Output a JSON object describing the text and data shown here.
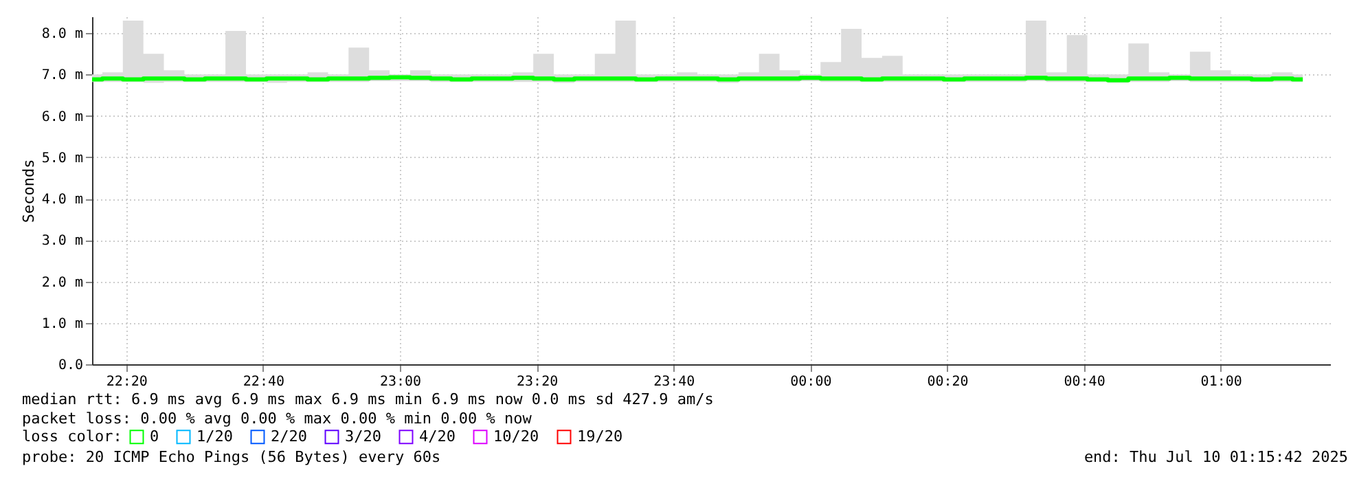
{
  "chart_data": {
    "type": "line",
    "ylabel": "Seconds",
    "legend_title": "loss color:",
    "legend": "bottom",
    "grid": true,
    "marker": "none",
    "line_style": "solid",
    "x": [
      "2025-07-09T22:15",
      "2025-07-09T22:18",
      "2025-07-09T22:21",
      "2025-07-09T22:24",
      "2025-07-09T22:27",
      "2025-07-09T22:30",
      "2025-07-09T22:33",
      "2025-07-09T22:36",
      "2025-07-09T22:39",
      "2025-07-09T22:42",
      "2025-07-09T22:45",
      "2025-07-09T22:48",
      "2025-07-09T22:51",
      "2025-07-09T22:54",
      "2025-07-09T22:57",
      "2025-07-09T23:00",
      "2025-07-09T23:03",
      "2025-07-09T23:06",
      "2025-07-09T23:09",
      "2025-07-09T23:12",
      "2025-07-09T23:15",
      "2025-07-09T23:18",
      "2025-07-09T23:21",
      "2025-07-09T23:24",
      "2025-07-09T23:27",
      "2025-07-09T23:30",
      "2025-07-09T23:33",
      "2025-07-09T23:36",
      "2025-07-09T23:39",
      "2025-07-09T23:42",
      "2025-07-09T23:45",
      "2025-07-09T23:48",
      "2025-07-09T23:51",
      "2025-07-09T23:54",
      "2025-07-09T23:57",
      "2025-07-10T00:00",
      "2025-07-10T00:03",
      "2025-07-10T00:06",
      "2025-07-10T00:09",
      "2025-07-10T00:12",
      "2025-07-10T00:15",
      "2025-07-10T00:18",
      "2025-07-10T00:21",
      "2025-07-10T00:24",
      "2025-07-10T00:27",
      "2025-07-10T00:30",
      "2025-07-10T00:33",
      "2025-07-10T00:36",
      "2025-07-10T00:39",
      "2025-07-10T00:42",
      "2025-07-10T00:45",
      "2025-07-10T00:48",
      "2025-07-10T00:51",
      "2025-07-10T00:54",
      "2025-07-10T00:57",
      "2025-07-10T01:00",
      "2025-07-10T01:03",
      "2025-07-10T01:06",
      "2025-07-10T01:09",
      "2025-07-10T01:12"
    ],
    "xlim": [
      "2025-07-09T22:15",
      "2025-07-10T01:16"
    ],
    "ylim": [
      0,
      8.4
    ],
    "xticks": [
      {
        "value": "2025-07-09T22:20",
        "label": "22:20"
      },
      {
        "value": "2025-07-09T22:40",
        "label": "22:40"
      },
      {
        "value": "2025-07-09T23:00",
        "label": "23:00"
      },
      {
        "value": "2025-07-09T23:20",
        "label": "23:20"
      },
      {
        "value": "2025-07-09T23:40",
        "label": "23:40"
      },
      {
        "value": "2025-07-10T00:00",
        "label": "00:00"
      },
      {
        "value": "2025-07-10T00:20",
        "label": "00:20"
      },
      {
        "value": "2025-07-10T00:40",
        "label": "00:40"
      },
      {
        "value": "2025-07-10T01:00",
        "label": "01:00"
      }
    ],
    "yticks": [
      {
        "value": 0,
        "label": "0.0"
      },
      {
        "value": 1,
        "label": "1.0 m"
      },
      {
        "value": 2,
        "label": "2.0 m"
      },
      {
        "value": 3,
        "label": "3.0 m"
      },
      {
        "value": 4,
        "label": "4.0 m"
      },
      {
        "value": 5,
        "label": "5.0 m"
      },
      {
        "value": 6,
        "label": "6.0 m"
      },
      {
        "value": 7,
        "label": "7.0 m"
      },
      {
        "value": 8,
        "label": "8.0 m"
      }
    ],
    "series": [
      {
        "name": "0",
        "color": "#00ff00",
        "values": [
          6.88,
          6.9,
          6.88,
          6.9,
          6.9,
          6.88,
          6.9,
          6.9,
          6.88,
          6.9,
          6.9,
          6.88,
          6.9,
          6.9,
          6.92,
          6.93,
          6.92,
          6.9,
          6.88,
          6.9,
          6.9,
          6.92,
          6.9,
          6.88,
          6.9,
          6.9,
          6.9,
          6.88,
          6.9,
          6.9,
          6.9,
          6.88,
          6.9,
          6.9,
          6.9,
          6.92,
          6.9,
          6.9,
          6.88,
          6.9,
          6.9,
          6.9,
          6.88,
          6.9,
          6.9,
          6.9,
          6.92,
          6.9,
          6.9,
          6.88,
          6.86,
          6.9,
          6.9,
          6.92,
          6.9,
          6.9,
          6.9,
          6.88,
          6.9,
          6.88
        ],
        "lower": [
          6.82,
          6.82,
          6.82,
          6.8,
          6.82,
          6.82,
          6.82,
          6.82,
          6.82,
          6.8,
          6.82,
          6.82,
          6.82,
          6.82,
          6.84,
          6.84,
          6.84,
          6.82,
          6.82,
          6.82,
          6.82,
          6.82,
          6.82,
          6.8,
          6.82,
          6.82,
          6.82,
          6.82,
          6.82,
          6.82,
          6.82,
          6.8,
          6.82,
          6.82,
          6.82,
          6.84,
          6.82,
          6.82,
          6.82,
          6.82,
          6.82,
          6.82,
          6.82,
          6.82,
          6.82,
          6.82,
          6.84,
          6.82,
          6.82,
          6.82,
          6.8,
          6.82,
          6.82,
          6.84,
          6.82,
          6.82,
          6.82,
          6.82,
          6.82,
          6.82
        ],
        "upper": [
          7.0,
          7.05,
          8.3,
          7.5,
          7.1,
          7.0,
          7.0,
          8.05,
          7.0,
          7.0,
          7.0,
          7.05,
          7.0,
          7.65,
          7.1,
          7.0,
          7.1,
          7.0,
          7.0,
          7.0,
          7.0,
          7.05,
          7.5,
          7.0,
          7.0,
          7.5,
          8.3,
          7.0,
          7.0,
          7.05,
          7.0,
          7.0,
          7.05,
          7.5,
          7.1,
          7.0,
          7.3,
          8.1,
          7.4,
          7.45,
          7.0,
          7.0,
          7.0,
          7.0,
          7.0,
          7.0,
          8.3,
          7.05,
          7.95,
          7.0,
          7.0,
          7.75,
          7.05,
          7.0,
          7.55,
          7.1,
          7.0,
          7.0,
          7.05,
          7.0
        ]
      },
      {
        "name": "1/20",
        "color": "#00b8ff",
        "values": [
          null,
          null,
          null,
          null,
          null,
          null,
          null,
          null,
          null,
          null,
          null,
          null,
          null,
          null,
          null,
          null,
          null,
          null,
          null,
          null,
          null,
          null,
          null,
          null,
          null,
          null,
          null,
          null,
          null,
          null,
          null,
          null,
          null,
          null,
          null,
          null,
          null,
          null,
          null,
          null,
          null,
          null,
          null,
          null,
          null,
          null,
          null,
          null,
          null,
          null,
          null,
          null,
          null,
          null,
          null,
          null,
          null,
          null,
          null,
          null
        ]
      },
      {
        "name": "2/20",
        "color": "#0059ff",
        "values": [
          null,
          null,
          null,
          null,
          null,
          null,
          null,
          null,
          null,
          null,
          null,
          null,
          null,
          null,
          null,
          null,
          null,
          null,
          null,
          null,
          null,
          null,
          null,
          null,
          null,
          null,
          null,
          null,
          null,
          null,
          null,
          null,
          null,
          null,
          null,
          null,
          null,
          null,
          null,
          null,
          null,
          null,
          null,
          null,
          null,
          null,
          null,
          null,
          null,
          null,
          null,
          null,
          null,
          null,
          null,
          null,
          null,
          null,
          null,
          null
        ]
      },
      {
        "name": "3/20",
        "color": "#5e00ff",
        "values": [
          null,
          null,
          null,
          null,
          null,
          null,
          null,
          null,
          null,
          null,
          null,
          null,
          null,
          null,
          null,
          null,
          null,
          null,
          null,
          null,
          null,
          null,
          null,
          null,
          null,
          null,
          null,
          null,
          null,
          null,
          null,
          null,
          null,
          null,
          null,
          null,
          null,
          null,
          null,
          null,
          null,
          null,
          null,
          null,
          null,
          null,
          null,
          null,
          null,
          null,
          null,
          null,
          null,
          null,
          null,
          null,
          null,
          null,
          null,
          null
        ]
      },
      {
        "name": "4/20",
        "color": "#7e00ff",
        "values": [
          null,
          null,
          null,
          null,
          null,
          null,
          null,
          null,
          null,
          null,
          null,
          null,
          null,
          null,
          null,
          null,
          null,
          null,
          null,
          null,
          null,
          null,
          null,
          null,
          null,
          null,
          null,
          null,
          null,
          null,
          null,
          null,
          null,
          null,
          null,
          null,
          null,
          null,
          null,
          null,
          null,
          null,
          null,
          null,
          null,
          null,
          null,
          null,
          null,
          null,
          null,
          null,
          null,
          null,
          null,
          null,
          null,
          null,
          null,
          null
        ]
      },
      {
        "name": "10/20",
        "color": "#dd00ff",
        "values": [
          null,
          null,
          null,
          null,
          null,
          null,
          null,
          null,
          null,
          null,
          null,
          null,
          null,
          null,
          null,
          null,
          null,
          null,
          null,
          null,
          null,
          null,
          null,
          null,
          null,
          null,
          null,
          null,
          null,
          null,
          null,
          null,
          null,
          null,
          null,
          null,
          null,
          null,
          null,
          null,
          null,
          null,
          null,
          null,
          null,
          null,
          null,
          null,
          null,
          null,
          null,
          null,
          null,
          null,
          null,
          null,
          null,
          null,
          null,
          null
        ]
      },
      {
        "name": "19/20",
        "color": "#ff0000",
        "values": [
          null,
          null,
          null,
          null,
          null,
          null,
          null,
          null,
          null,
          null,
          null,
          null,
          null,
          null,
          null,
          null,
          null,
          null,
          null,
          null,
          null,
          null,
          null,
          null,
          null,
          null,
          null,
          null,
          null,
          null,
          null,
          null,
          null,
          null,
          null,
          null,
          null,
          null,
          null,
          null,
          null,
          null,
          null,
          null,
          null,
          null,
          null,
          null,
          null,
          null,
          null,
          null,
          null,
          null,
          null,
          null,
          null,
          null,
          null,
          null
        ]
      }
    ],
    "annotations": [
      "median rtt: 6.9 ms avg 6.9 ms max 6.9 ms min 6.9 ms now 0.0 ms sd 427.9 am/s",
      "packet loss: 0.00 % avg 0.00 % max 0.00 % min 0.00 % now",
      "probe: 20 ICMP Echo Pings (56 Bytes) every 60s",
      "end: Thu Jul 10 01:15:42 2025"
    ]
  }
}
